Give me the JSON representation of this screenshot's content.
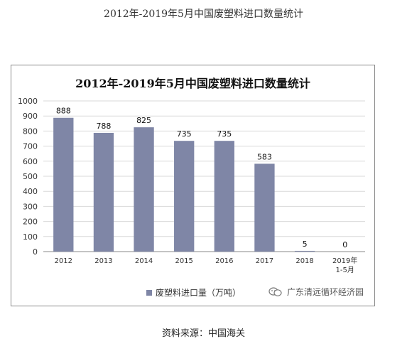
{
  "page_title": "2012年-2019年5月中国废塑料进口数量统计",
  "source": "资料来源：中国海关",
  "watermark": "广东清远循环经济园",
  "wechat_icon": "wechat-icon",
  "chart_data": {
    "type": "bar",
    "title": "2012年-2019年5月中国废塑料进口数量统计",
    "categories": [
      "2012",
      "2013",
      "2014",
      "2015",
      "2016",
      "2017",
      "2018",
      "2019年\n1-5月"
    ],
    "series": [
      {
        "name": "废塑料进口量（万吨）",
        "values": [
          888,
          788,
          825,
          735,
          735,
          583,
          5,
          0
        ],
        "color": "#7f86a6"
      }
    ],
    "ylim": [
      0,
      1000
    ],
    "yticks": [
      0,
      100,
      200,
      300,
      400,
      500,
      600,
      700,
      800,
      900,
      1000
    ],
    "grid": true,
    "legend": "bottom"
  }
}
